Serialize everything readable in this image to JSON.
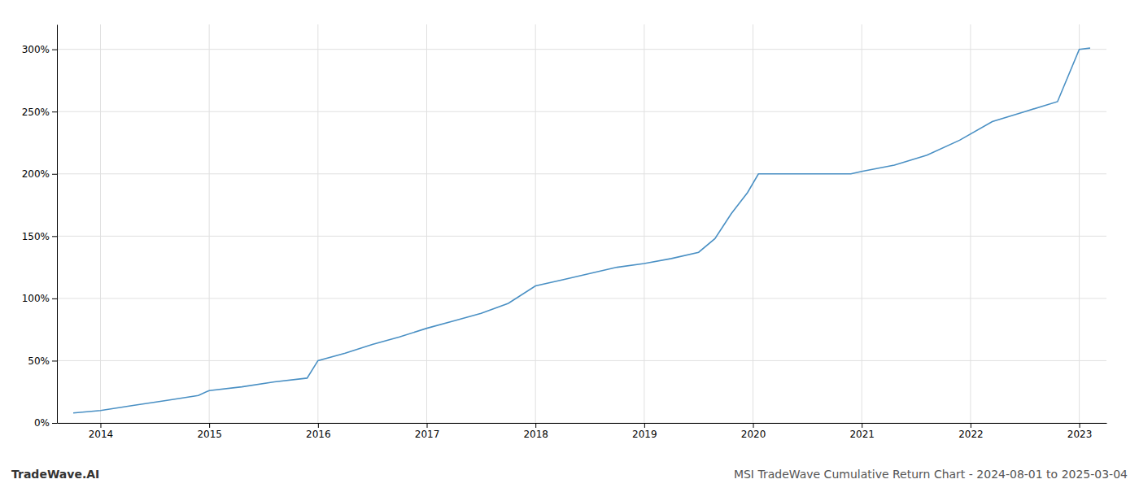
{
  "chart_data": {
    "type": "line",
    "title": "MSI TradeWave Cumulative Return Chart - 2024-08-01 to 2025-03-04",
    "annotations": [
      "TradeWave.AI"
    ],
    "x": [
      2013.75,
      2014.0,
      2014.3,
      2014.6,
      2014.9,
      2015.0,
      2015.3,
      2015.6,
      2015.9,
      2016.0,
      2016.25,
      2016.5,
      2016.75,
      2017.0,
      2017.25,
      2017.5,
      2017.75,
      2018.0,
      2018.25,
      2018.5,
      2018.75,
      2019.0,
      2019.25,
      2019.5,
      2019.65,
      2019.8,
      2019.95,
      2020.05,
      2020.3,
      2020.6,
      2020.9,
      2021.0,
      2021.3,
      2021.6,
      2021.9,
      2022.2,
      2022.5,
      2022.8,
      2023.0,
      2023.1
    ],
    "values": [
      8,
      10,
      14,
      18,
      22,
      26,
      29,
      33,
      36,
      50,
      56,
      63,
      69,
      76,
      82,
      88,
      96,
      110,
      115,
      120,
      125,
      128,
      132,
      137,
      148,
      168,
      185,
      200,
      200,
      200,
      200,
      202,
      207,
      215,
      227,
      242,
      250,
      258,
      300,
      301
    ],
    "color": "#4a90c4",
    "xlim": [
      2013.6,
      2023.25
    ],
    "xticks": [
      2014,
      2015,
      2016,
      2017,
      2018,
      2019,
      2020,
      2021,
      2022,
      2023
    ],
    "ylim": [
      0,
      320
    ],
    "yticks": [
      {
        "value": 0,
        "label": "0%"
      },
      {
        "value": 50,
        "label": "50%"
      },
      {
        "value": 100,
        "label": "100%"
      },
      {
        "value": 150,
        "label": "150%"
      },
      {
        "value": 200,
        "label": "200%"
      },
      {
        "value": 250,
        "label": "250%"
      },
      {
        "value": 300,
        "label": "300%"
      }
    ],
    "grid": true
  }
}
